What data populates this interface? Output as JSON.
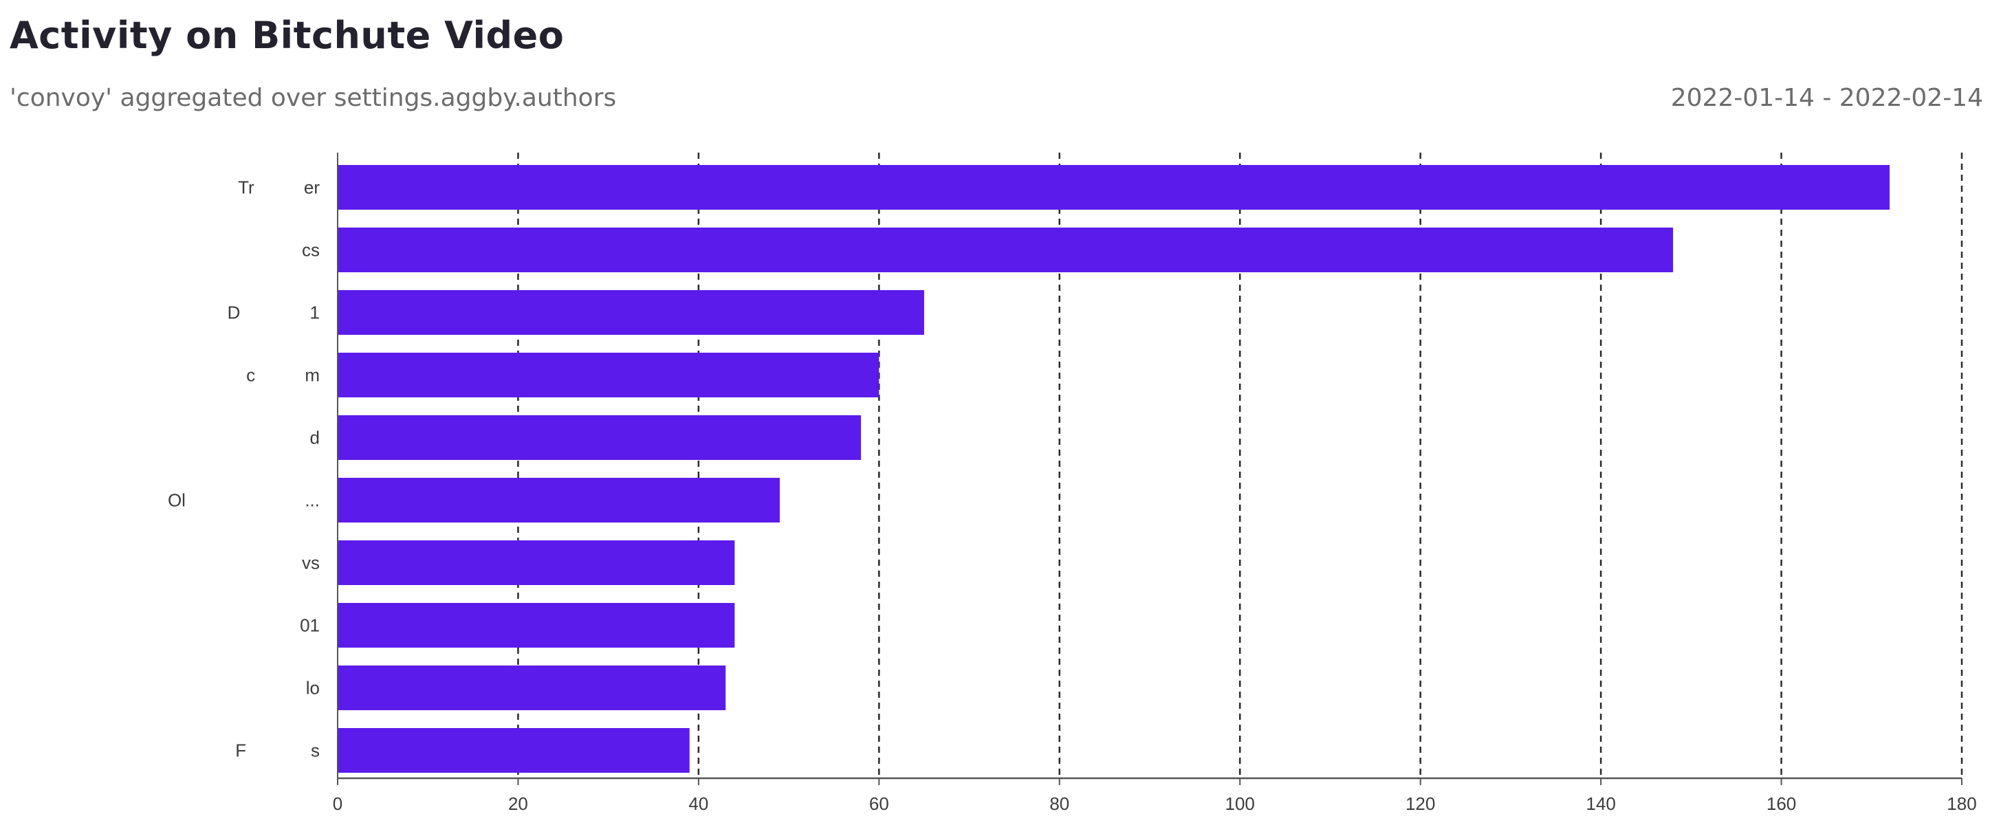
{
  "header": {
    "title": "Activity on Bitchute Video",
    "subtitle": "'convoy' aggregated over settings.aggby.authors",
    "date_range": "2022-01-14 - 2022-02-14"
  },
  "colors": {
    "bar": "#5b1bea",
    "grid": "#2a2a2a",
    "axis": "#555555"
  },
  "chart_data": {
    "type": "bar",
    "orientation": "horizontal",
    "categories": [
      "Tr          er",
      "cs",
      "D              1",
      "c          m",
      "d",
      "Ol                        ...",
      "vs",
      "01",
      "lo",
      "F             s"
    ],
    "values": [
      172,
      148,
      65,
      60,
      58,
      49,
      44,
      44,
      43,
      39
    ],
    "xlim": [
      0,
      180
    ],
    "xticks": [
      0,
      20,
      40,
      60,
      80,
      100,
      120,
      140,
      160,
      180
    ],
    "grid": "vertical dashed",
    "legend": "none"
  }
}
